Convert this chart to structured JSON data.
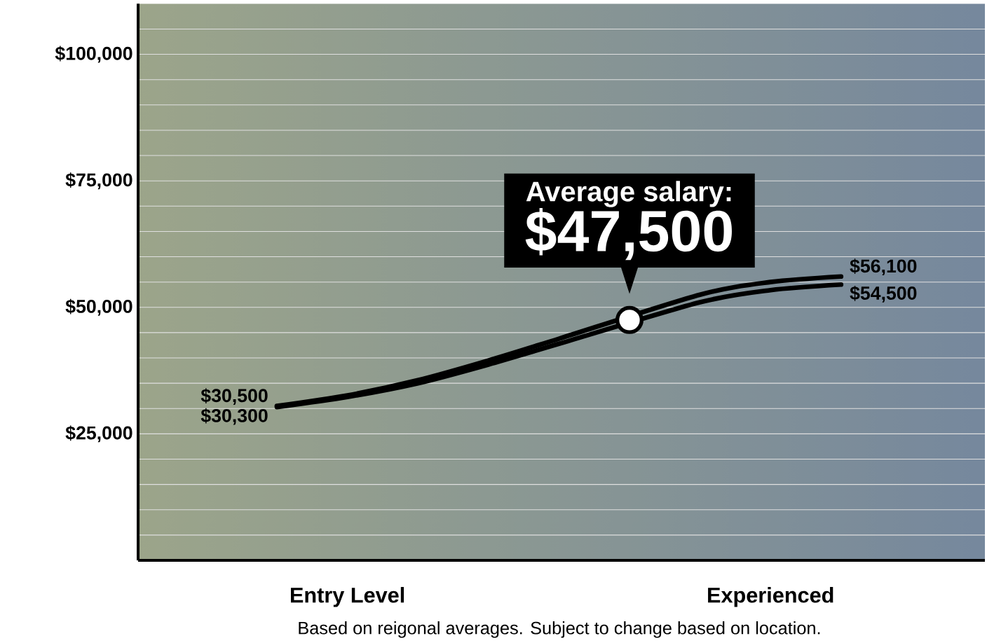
{
  "chart_data": {
    "type": "line",
    "categories": [
      null,
      "Entry Level",
      null,
      null,
      null,
      null,
      null,
      "Experienced",
      null
    ],
    "ylim": [
      0,
      110000
    ],
    "yticks": [
      {
        "value": 5000,
        "label": null
      },
      {
        "value": 10000,
        "label": null
      },
      {
        "value": 15000,
        "label": null
      },
      {
        "value": 20000,
        "label": null
      },
      {
        "value": 25000,
        "label": "$25,000"
      },
      {
        "value": 30000,
        "label": null
      },
      {
        "value": 35000,
        "label": null
      },
      {
        "value": 40000,
        "label": null
      },
      {
        "value": 45000,
        "label": null
      },
      {
        "value": 50000,
        "label": "$50,000"
      },
      {
        "value": 55000,
        "label": null
      },
      {
        "value": 60000,
        "label": null
      },
      {
        "value": 65000,
        "label": null
      },
      {
        "value": 70000,
        "label": null
      },
      {
        "value": 75000,
        "label": "$75,000"
      },
      {
        "value": 80000,
        "label": null
      },
      {
        "value": 85000,
        "label": null
      },
      {
        "value": 90000,
        "label": null
      },
      {
        "value": 95000,
        "label": null
      },
      {
        "value": 100000,
        "label": "$100,000"
      },
      {
        "value": 105000,
        "label": null
      }
    ],
    "grid": "y",
    "series": [
      {
        "color": "#000000",
        "values": [
          30500,
          32600,
          35600,
          39500,
          43800,
          null,
          52500,
          55000,
          56100
        ],
        "value_labels": [
          "$30,500",
          null,
          null,
          null,
          null,
          null,
          null,
          null,
          "$56,100"
        ]
      },
      {
        "color": "#000000",
        "values": [
          30300,
          32300,
          35000,
          38700,
          42800,
          null,
          51000,
          53400,
          54500
        ],
        "value_labels": [
          "$30,300",
          null,
          null,
          null,
          null,
          null,
          null,
          null,
          "$54,500"
        ]
      },
      {
        "type": "scatter",
        "marker": "circle",
        "color": "#ffffff",
        "values": [
          null,
          null,
          null,
          null,
          null,
          47500,
          null,
          null,
          null
        ]
      }
    ],
    "annotations": [
      "Average salary:",
      "$47,500",
      "Based on reigonal averages. Subject to change based on location."
    ]
  }
}
